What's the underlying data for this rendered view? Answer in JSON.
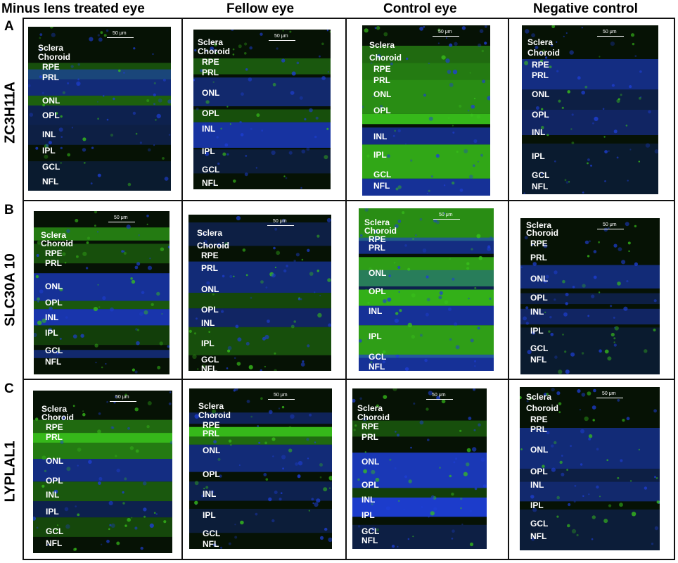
{
  "columns": [
    "Minus lens treated eye",
    "Fellow eye",
    "Control eye",
    "Negative control"
  ],
  "rows": [
    {
      "letter": "A",
      "marker": "ZC3H11A"
    },
    {
      "letter": "B",
      "marker": "SLC30A 10"
    },
    {
      "letter": "C",
      "marker": "LYPLAL1"
    }
  ],
  "scale_bar": "50 μm",
  "layers": {
    "sclera": "Sclera",
    "choroid": "Choroid",
    "rpe": "RPE",
    "prl": "PRL",
    "onl": "ONL",
    "opl": "OPL",
    "inl": "INL",
    "ipl": "IPL",
    "gcl": "GCL",
    "nfl": "NFL"
  },
  "colors": {
    "nuclei_stain": "#1e3fd6",
    "marker_stain": "#39c21b",
    "background": "#061205"
  }
}
